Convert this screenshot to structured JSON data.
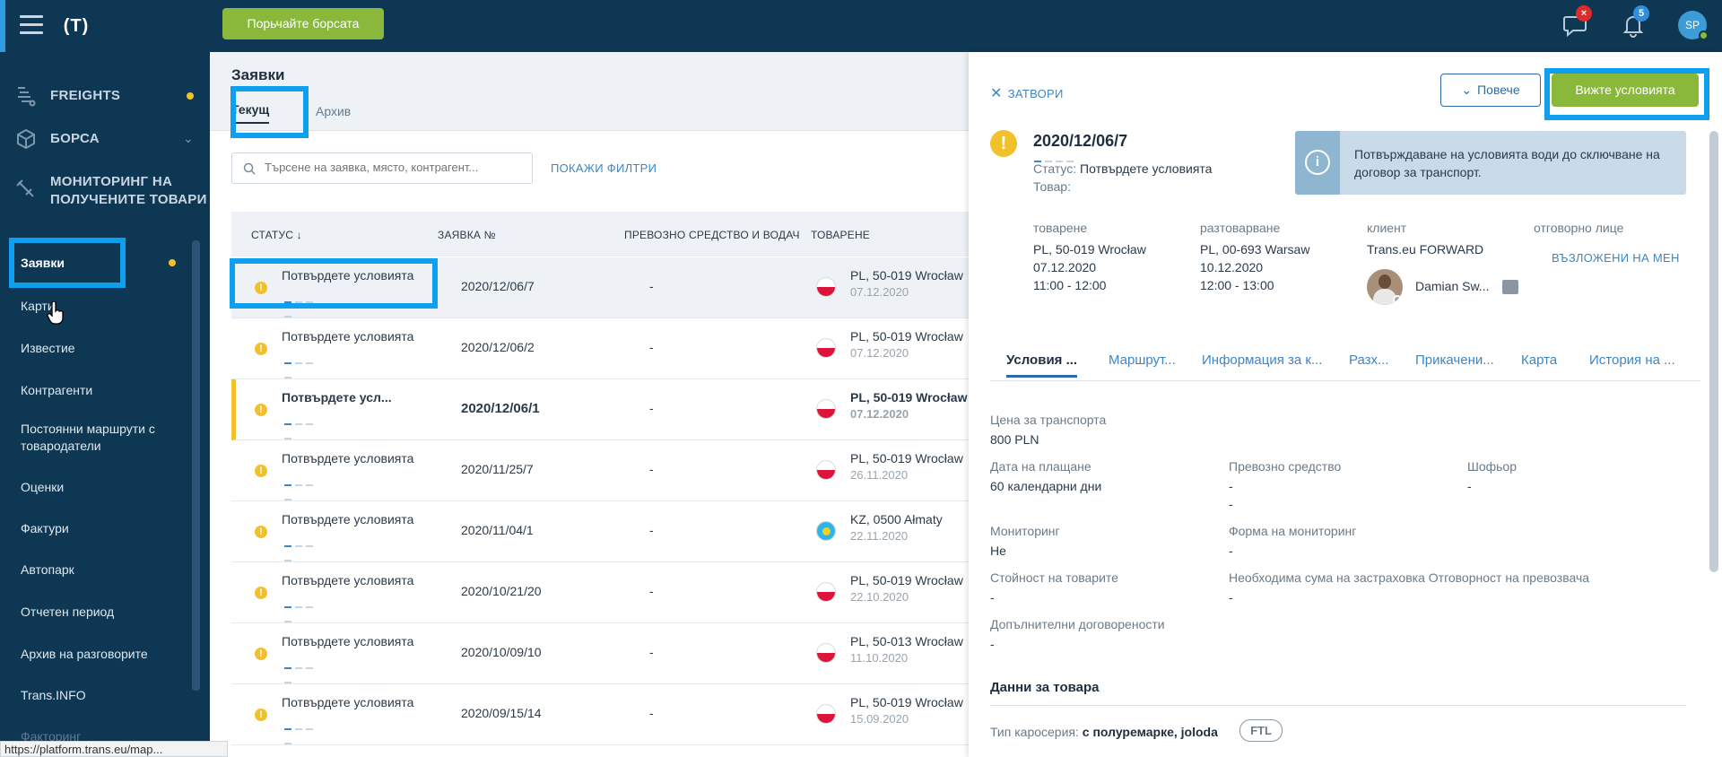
{
  "topbar": {
    "logo": "(T)",
    "exchange_button": "Порьчайте борсата",
    "messages_badge": "×",
    "notifications_badge": "5",
    "user_initials": "SP"
  },
  "sidebar": {
    "main": [
      {
        "label": "FREIGHTS"
      },
      {
        "label": "БОРСА"
      },
      {
        "label": "МОНИТОРИНГ НА",
        "label2": "ПОЛУЧЕНИТЕ ТОВАРИ"
      }
    ],
    "sub": [
      {
        "label": "Заявки"
      },
      {
        "label": "Карти"
      },
      {
        "label": "Известие"
      },
      {
        "label": "Контрагенти"
      },
      {
        "label": "Постоянни маршрути с",
        "label2": "товародатели"
      },
      {
        "label": "Оценки"
      },
      {
        "label": "Фактури"
      },
      {
        "label": "Автопарк"
      },
      {
        "label": "Отчетен период"
      },
      {
        "label": "Архив на разговорите"
      },
      {
        "label": "Trans.INFO"
      },
      {
        "label": "Факторинг"
      }
    ]
  },
  "main": {
    "title": "Заявки",
    "tabs": [
      "Текущ",
      "Архив"
    ],
    "search_placeholder": "Търсене на заявка, място, контрагент...",
    "filters_link": "ПОКАЖИ ФИЛТРИ",
    "columns": [
      "СТАТУС ↓",
      "ЗАЯВКА №",
      "ПРЕВОЗНО СРЕДСТВО И ВОДАЧ",
      "ТОВАРЕНЕ"
    ],
    "rows": [
      {
        "status": "Потвърдете условията",
        "number": "2020/12/06/7",
        "vehicle": "-",
        "loading": "PL, 50-019 Wrocław",
        "date": "07.12.2020"
      },
      {
        "status": "Потвърдете условията",
        "number": "2020/12/06/2",
        "vehicle": "-",
        "loading": "PL, 50-019 Wrocław",
        "date": "07.12.2020"
      },
      {
        "status": "Потвърдете усл...",
        "number": "2020/12/06/1",
        "vehicle": "-",
        "loading": "PL, 50-019 Wrocław",
        "date": "07.12.2020"
      },
      {
        "status": "Потвърдете условията",
        "number": "2020/11/25/7",
        "vehicle": "-",
        "loading": "PL, 50-019 Wrocław",
        "date": "26.11.2020"
      },
      {
        "status": "Потвърдете условията",
        "number": "2020/11/04/1",
        "vehicle": "-",
        "loading": "KZ, 0500 Ałmaty",
        "date": "22.11.2020"
      },
      {
        "status": "Потвърдете условията",
        "number": "2020/10/21/20",
        "vehicle": "-",
        "loading": "PL, 50-019 Wrocław",
        "date": "22.10.2020"
      },
      {
        "status": "Потвърдете условията",
        "number": "2020/10/09/10",
        "vehicle": "-",
        "loading": "PL, 50-013 Wrocław",
        "date": "11.10.2020"
      },
      {
        "status": "Потвърдете условията",
        "number": "2020/09/15/14",
        "vehicle": "-",
        "loading": "PL, 50-019 Wrocław",
        "date": "15.09.2020"
      }
    ]
  },
  "panel": {
    "close": "ЗАТВОРИ",
    "more_button": "Повече",
    "conditions_button": "Вижте условията",
    "order_number": "2020/12/06/7",
    "status_label": "Статус:",
    "status_value": "Потвърдете условията",
    "goods_label": "Товар:",
    "info_text": "Потвърждаване на условията води до сключване на договор за транспорт.",
    "loading": {
      "header": "товарене",
      "place": "PL, 50-019 Wrocław",
      "date": "07.12.2020",
      "time": "11:00 - 12:00"
    },
    "unloading": {
      "header": "разтоварване",
      "place": "PL, 00-693 Warsaw",
      "date": "10.12.2020",
      "time": "12:00 - 13:00"
    },
    "client": {
      "header": "клиент",
      "name": "Trans.eu FORWARD",
      "person": "Damian Sw..."
    },
    "responsible": {
      "header": "отговорно лице",
      "link": "ВЪЗЛОЖЕНИ НА МЕН"
    },
    "tabs": [
      "Условия ...",
      "Маршрут...",
      "Информация за к...",
      "Разх...",
      "Прикачени...",
      "Карта",
      "История на ..."
    ],
    "fields": {
      "price_label": "Цена за транспорта",
      "price_value": "800 PLN",
      "payment_label": "Дата на плащане",
      "payment_value": "60 календарни дни",
      "vehicle_label": "Превозно средство",
      "vehicle_value": "-",
      "vehicle_value2": "-",
      "driver_label": "Шофьор",
      "driver_value": "-",
      "monitoring_label": "Мониторинг",
      "monitoring_value": "Не",
      "monitoring_form_label": "Форма на мониторинг",
      "monitoring_form_value": "-",
      "goods_value_label": "Стойност на товарите",
      "goods_value_value": "-",
      "insurance_label": "Необходима сума на застраховка Отговорност на превозвача",
      "insurance_value": "-",
      "extra_label": "Допълнителни договорености",
      "extra_value": "-"
    },
    "goods_section": "Данни за товара",
    "body_type_label": "Тип каросерия:",
    "body_type_value": "с полуремарке, joloda",
    "body_tag": "FTL"
  },
  "status_url": "https://platform.trans.eu/map..."
}
